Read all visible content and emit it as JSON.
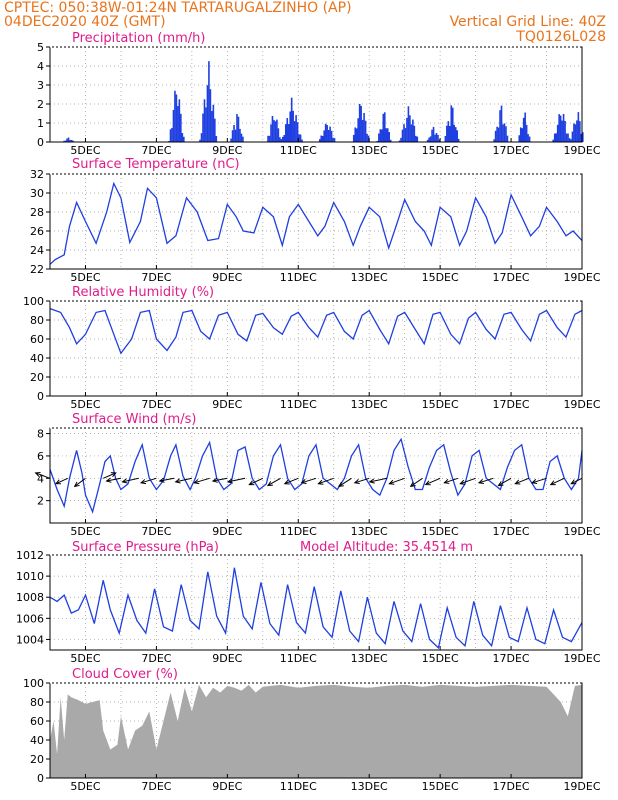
{
  "header": {
    "line1_left": "CPTEC:   050:38W-01:24N   TARTARUGALZINHO (AP)",
    "line2_left": "04DEC2020 40Z (GMT)",
    "line2_right": "Vertical Grid Line: 40Z",
    "line3_right": "TQ0126L028"
  },
  "colors": {
    "header": "#e8741c",
    "title": "#e01c8c",
    "series": "#1f3fe0",
    "cloud": "#a9a9a9",
    "wind_arrow": "#000000"
  },
  "x_axis": {
    "start": "04DEC2020 00Z",
    "end": "19DEC2020 00Z",
    "tick_labels": [
      "5DEC",
      "7DEC",
      "9DEC",
      "11DEC",
      "13DEC",
      "15DEC",
      "17DEC",
      "19DEC"
    ],
    "tick_days": [
      1,
      3,
      5,
      7,
      9,
      11,
      13,
      15
    ]
  },
  "panels": {
    "precip": {
      "title": "Precipitation (mm/h)",
      "ylim": [
        0,
        5
      ],
      "yticks": [
        "0",
        "1",
        "2",
        "3",
        "4",
        "5"
      ],
      "chart_data": {
        "type": "bar",
        "unit": "mm/h",
        "events": [
          {
            "day": 0.5,
            "peak": 0.25,
            "width": 0.18
          },
          {
            "day": 3.55,
            "peak": 3.5,
            "width": 0.22
          },
          {
            "day": 4.45,
            "peak": 4.4,
            "width": 0.25
          },
          {
            "day": 5.25,
            "peak": 1.7,
            "width": 0.2
          },
          {
            "day": 6.3,
            "peak": 1.8,
            "width": 0.22
          },
          {
            "day": 6.8,
            "peak": 2.4,
            "width": 0.3
          },
          {
            "day": 7.8,
            "peak": 1.2,
            "width": 0.25
          },
          {
            "day": 8.75,
            "peak": 2.4,
            "width": 0.25
          },
          {
            "day": 9.4,
            "peak": 1.8,
            "width": 0.2
          },
          {
            "day": 10.1,
            "peak": 2.0,
            "width": 0.28
          },
          {
            "day": 10.8,
            "peak": 0.9,
            "width": 0.2
          },
          {
            "day": 11.3,
            "peak": 2.2,
            "width": 0.22
          },
          {
            "day": 12.7,
            "peak": 2.1,
            "width": 0.22
          },
          {
            "day": 13.35,
            "peak": 1.8,
            "width": 0.18
          },
          {
            "day": 14.4,
            "peak": 2.0,
            "width": 0.25
          },
          {
            "day": 14.85,
            "peak": 1.8,
            "width": 0.22
          }
        ]
      }
    },
    "temp": {
      "title": "Surface Temperature (nC)",
      "ylim": [
        22,
        32
      ],
      "yticks": [
        "22",
        "24",
        "26",
        "28",
        "30",
        "32"
      ],
      "chart_data": {
        "type": "line",
        "unit": "C",
        "x": [
          0,
          0.15,
          0.4,
          0.55,
          0.75,
          1.0,
          1.3,
          1.6,
          1.8,
          2.0,
          2.25,
          2.55,
          2.75,
          3.0,
          3.3,
          3.55,
          3.85,
          4.15,
          4.45,
          4.75,
          5.0,
          5.25,
          5.45,
          5.75,
          6.0,
          6.3,
          6.55,
          6.75,
          7.0,
          7.3,
          7.55,
          7.75,
          8.0,
          8.3,
          8.55,
          8.75,
          9.0,
          9.3,
          9.55,
          9.8,
          10.0,
          10.3,
          10.55,
          10.75,
          11.0,
          11.3,
          11.55,
          11.75,
          12.0,
          12.3,
          12.55,
          12.75,
          13.0,
          13.3,
          13.55,
          13.8,
          14.0,
          14.3,
          14.55,
          14.75,
          15.0
        ],
        "y": [
          22.5,
          23.0,
          23.5,
          26.5,
          29.0,
          27.0,
          24.7,
          28.0,
          31.0,
          29.5,
          24.8,
          27.0,
          30.5,
          29.5,
          24.7,
          25.5,
          29.5,
          28.0,
          25.0,
          25.2,
          28.8,
          27.5,
          26.0,
          25.8,
          28.5,
          27.5,
          24.5,
          27.5,
          28.8,
          27.0,
          25.5,
          26.5,
          29.0,
          27.0,
          24.5,
          26.5,
          28.5,
          27.5,
          24.2,
          27.0,
          29.3,
          27.0,
          26.0,
          24.5,
          28.5,
          27.5,
          24.5,
          26.0,
          29.5,
          27.5,
          24.7,
          25.8,
          29.8,
          27.5,
          25.5,
          26.5,
          28.5,
          27.0,
          25.5,
          26.0,
          25.0
        ]
      }
    },
    "rh": {
      "title": "Relative Humidity (%)",
      "ylim": [
        0,
        100
      ],
      "yticks": [
        "0",
        "20",
        "40",
        "60",
        "80",
        "100"
      ],
      "chart_data": {
        "type": "line",
        "unit": "%",
        "x": [
          0,
          0.3,
          0.55,
          0.75,
          1.0,
          1.3,
          1.55,
          1.8,
          2.0,
          2.3,
          2.55,
          2.8,
          3.0,
          3.3,
          3.55,
          3.75,
          4.0,
          4.25,
          4.5,
          4.75,
          5.0,
          5.3,
          5.55,
          5.8,
          6.0,
          6.3,
          6.55,
          6.8,
          7.0,
          7.3,
          7.55,
          7.8,
          8.0,
          8.3,
          8.55,
          8.8,
          9.0,
          9.3,
          9.55,
          9.8,
          10.0,
          10.3,
          10.55,
          10.8,
          11.0,
          11.3,
          11.55,
          11.8,
          12.0,
          12.3,
          12.55,
          12.8,
          13.0,
          13.3,
          13.55,
          13.8,
          14.0,
          14.3,
          14.55,
          14.8,
          15.0
        ],
        "y": [
          92,
          88,
          72,
          55,
          65,
          88,
          90,
          65,
          45,
          60,
          88,
          90,
          60,
          48,
          62,
          88,
          90,
          68,
          60,
          85,
          88,
          65,
          58,
          85,
          87,
          72,
          65,
          84,
          88,
          72,
          62,
          85,
          88,
          68,
          60,
          85,
          90,
          70,
          55,
          84,
          88,
          70,
          55,
          86,
          88,
          65,
          55,
          82,
          88,
          70,
          60,
          86,
          88,
          70,
          58,
          86,
          90,
          72,
          62,
          86,
          90
        ]
      }
    },
    "wind": {
      "title": "Surface Wind (m/s)",
      "ylim": [
        0,
        8.5
      ],
      "yticks": [
        "2",
        "4",
        "6",
        "8"
      ],
      "ytick_values": [
        2,
        4,
        6,
        8
      ],
      "chart_data": {
        "type": "line",
        "unit": "m/s",
        "x": [
          0,
          0.2,
          0.4,
          0.55,
          0.75,
          0.9,
          1.0,
          1.2,
          1.4,
          1.55,
          1.7,
          1.85,
          2.0,
          2.2,
          2.4,
          2.6,
          2.8,
          3.0,
          3.2,
          3.4,
          3.55,
          3.75,
          3.95,
          4.1,
          4.3,
          4.5,
          4.7,
          4.9,
          5.1,
          5.3,
          5.5,
          5.7,
          5.9,
          6.1,
          6.3,
          6.5,
          6.7,
          6.9,
          7.1,
          7.3,
          7.5,
          7.7,
          7.9,
          8.1,
          8.3,
          8.5,
          8.7,
          8.9,
          9.1,
          9.3,
          9.5,
          9.7,
          9.9,
          10.1,
          10.3,
          10.5,
          10.7,
          10.9,
          11.1,
          11.3,
          11.5,
          11.7,
          11.9,
          12.1,
          12.3,
          12.5,
          12.7,
          12.9,
          13.1,
          13.3,
          13.5,
          13.7,
          13.9,
          14.1,
          14.3,
          14.5,
          14.7,
          14.9,
          15.0
        ],
        "y": [
          4.8,
          3.0,
          1.5,
          4.0,
          6.5,
          4.5,
          2.5,
          1.0,
          3.5,
          5.5,
          6.0,
          4.0,
          3.0,
          3.5,
          5.5,
          7.0,
          4.0,
          3.0,
          3.8,
          6.0,
          7.0,
          4.2,
          3.0,
          4.0,
          6.0,
          7.2,
          4.0,
          3.0,
          3.5,
          6.5,
          6.8,
          4.0,
          3.0,
          3.5,
          6.0,
          7.0,
          4.0,
          3.0,
          3.5,
          6.0,
          7.0,
          4.0,
          3.5,
          3.0,
          4.0,
          6.0,
          7.0,
          4.0,
          3.0,
          2.5,
          4.0,
          6.5,
          7.5,
          5.0,
          3.0,
          3.0,
          5.0,
          6.5,
          7.0,
          4.5,
          2.5,
          3.5,
          6.0,
          6.5,
          4.0,
          3.5,
          3.0,
          5.0,
          6.5,
          7.0,
          4.0,
          3.0,
          3.0,
          5.5,
          6.0,
          4.0,
          3.0,
          4.0,
          6.5
        ]
      },
      "arrows": {
        "spacing_days": 0.5,
        "u": [
          -1.6,
          -1.3,
          -1.2,
          1.4,
          -1.6,
          -1.8,
          -1.7,
          -1.6,
          -1.8,
          -1.7,
          -1.6,
          -1.9,
          -1.5,
          -1.4,
          -1.5,
          -1.6,
          -1.7,
          -1.4,
          -1.6,
          -1.9,
          -1.7,
          -1.3,
          -1.6,
          -1.5,
          -1.7,
          -1.6,
          -1.4,
          -1.5,
          -1.6,
          -1.5,
          -1.2
        ],
        "v": [
          0.6,
          -0.6,
          -0.9,
          0.6,
          -0.3,
          -0.4,
          -0.5,
          -0.3,
          -0.4,
          -0.5,
          -0.3,
          -0.4,
          -0.7,
          -0.8,
          -0.6,
          -0.5,
          -0.6,
          -0.9,
          -0.5,
          -0.4,
          -0.6,
          -0.9,
          -0.7,
          -0.5,
          -0.6,
          -0.5,
          -0.8,
          -0.6,
          -0.5,
          -0.7,
          -0.6
        ]
      }
    },
    "pressure": {
      "title": "Surface Pressure (hPa)",
      "subtitle": "Model Altitude: 35.4514 m",
      "ylim": [
        1003,
        1012
      ],
      "yticks": [
        "1004",
        "1006",
        "1008",
        "1010",
        "1012"
      ],
      "ytick_values": [
        1004,
        1006,
        1008,
        1010,
        1012
      ],
      "chart_data": {
        "type": "line",
        "unit": "hPa",
        "x": [
          0,
          0.2,
          0.4,
          0.6,
          0.8,
          1.0,
          1.25,
          1.5,
          1.7,
          1.95,
          2.2,
          2.45,
          2.7,
          2.95,
          3.2,
          3.45,
          3.7,
          3.95,
          4.2,
          4.45,
          4.7,
          4.95,
          5.2,
          5.45,
          5.7,
          5.95,
          6.2,
          6.45,
          6.7,
          6.95,
          7.2,
          7.45,
          7.7,
          7.95,
          8.2,
          8.45,
          8.7,
          8.95,
          9.2,
          9.45,
          9.7,
          9.95,
          10.2,
          10.45,
          10.7,
          10.95,
          11.2,
          11.45,
          11.7,
          11.95,
          12.2,
          12.45,
          12.7,
          12.95,
          13.2,
          13.45,
          13.7,
          13.95,
          14.2,
          14.45,
          14.7,
          15.0
        ],
        "y": [
          1008,
          1007.6,
          1008.2,
          1006.5,
          1006.8,
          1008.2,
          1005.5,
          1009.6,
          1006.8,
          1004.6,
          1008.2,
          1005.8,
          1004.6,
          1008.8,
          1005.2,
          1004.8,
          1009.2,
          1005.8,
          1005.0,
          1010.4,
          1006.2,
          1004.6,
          1010.8,
          1006.2,
          1005.0,
          1009.4,
          1005.5,
          1004.4,
          1009.2,
          1005.6,
          1004.6,
          1009.0,
          1005.2,
          1004.2,
          1008.6,
          1004.8,
          1003.8,
          1008.0,
          1004.6,
          1003.6,
          1007.6,
          1004.8,
          1003.8,
          1007.4,
          1004.0,
          1003.2,
          1007.0,
          1004.2,
          1003.4,
          1007.6,
          1004.4,
          1003.4,
          1007.2,
          1004.2,
          1003.8,
          1007.0,
          1004.0,
          1003.6,
          1006.8,
          1004.2,
          1003.8,
          1005.6
        ]
      }
    },
    "cloud": {
      "title": "Cloud Cover (%)",
      "ylim": [
        0,
        100
      ],
      "yticks": [
        "0",
        "20",
        "40",
        "60",
        "80",
        "100"
      ],
      "chart_data": {
        "type": "area",
        "unit": "%",
        "x": [
          0,
          0.1,
          0.2,
          0.3,
          0.4,
          0.5,
          0.6,
          0.8,
          1.0,
          1.2,
          1.4,
          1.5,
          1.7,
          1.9,
          2.0,
          2.2,
          2.4,
          2.6,
          2.8,
          3.0,
          3.2,
          3.4,
          3.6,
          3.8,
          4.0,
          4.2,
          4.4,
          4.6,
          4.8,
          5.0,
          5.2,
          5.4,
          5.6,
          5.8,
          6.0,
          6.5,
          7.0,
          7.5,
          8.0,
          8.5,
          9.0,
          9.5,
          10.0,
          10.5,
          11.0,
          11.5,
          12.0,
          12.5,
          13.0,
          13.5,
          14.0,
          14.4,
          14.6,
          14.8,
          15.0
        ],
        "y": [
          40,
          60,
          25,
          85,
          40,
          88,
          85,
          82,
          78,
          80,
          82,
          50,
          30,
          35,
          65,
          30,
          50,
          55,
          70,
          30,
          60,
          90,
          60,
          95,
          70,
          98,
          85,
          95,
          90,
          97,
          95,
          92,
          98,
          90,
          96,
          98,
          95,
          97,
          98,
          96,
          95,
          97,
          98,
          96,
          98,
          97,
          96,
          97,
          98,
          97,
          96,
          80,
          65,
          97,
          98
        ]
      }
    }
  }
}
